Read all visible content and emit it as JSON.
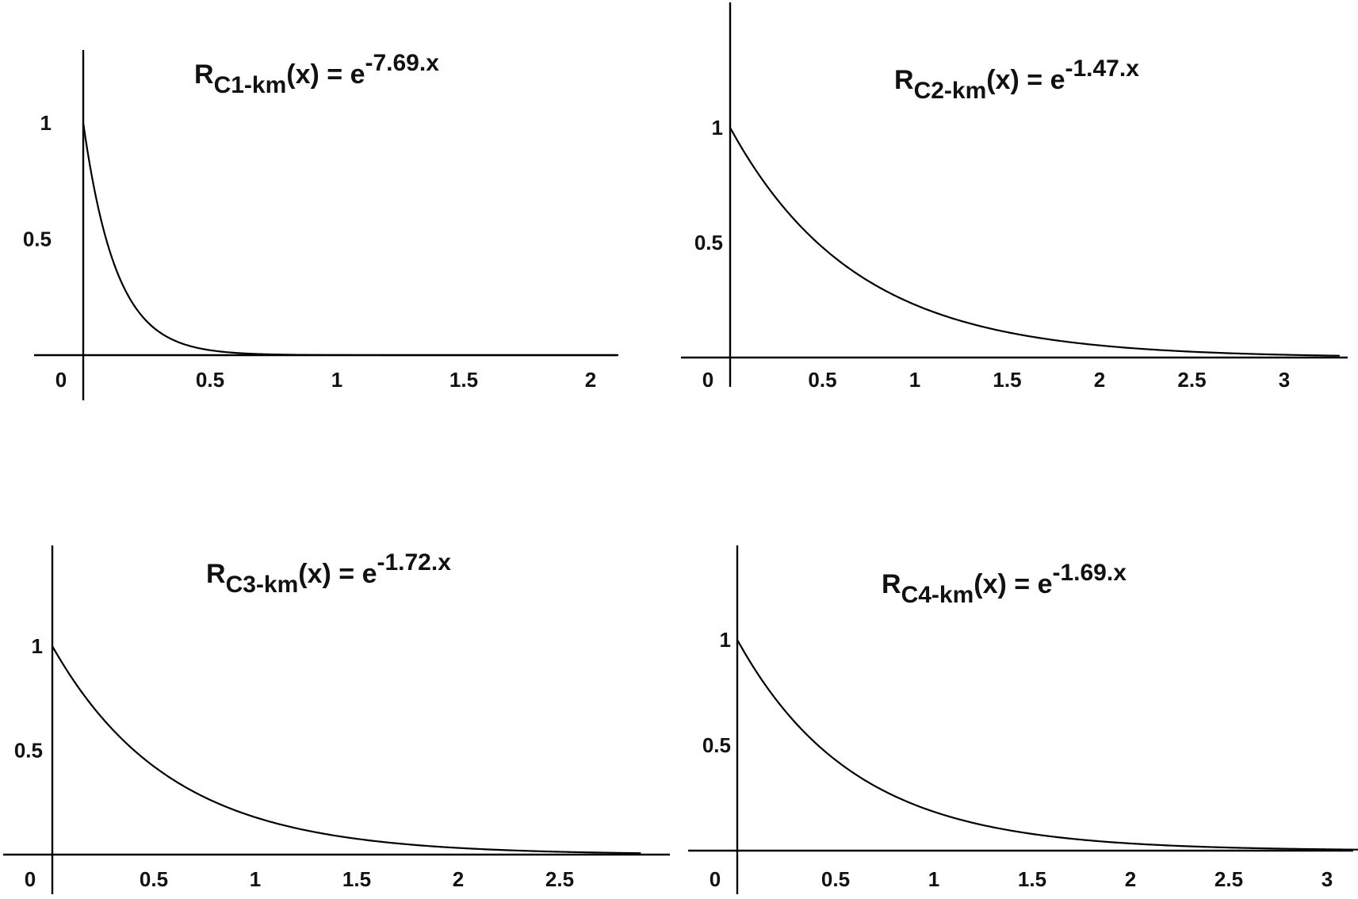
{
  "chart_data": [
    {
      "type": "line",
      "title": {
        "base": "R",
        "sub": "C1-km",
        "mid": "(x) = e",
        "sup": "-7.69.x"
      },
      "rate": 7.69,
      "series": [
        {
          "x": [
            0,
            0.1,
            0.2,
            0.3,
            0.4,
            0.5,
            0.6,
            0.8,
            1.0,
            1.5,
            2.0,
            2.1
          ],
          "y": [
            1,
            0.463,
            0.215,
            0.0995,
            0.0461,
            0.0214,
            0.0099,
            0.0021,
            0.0005,
            0.0,
            0.0,
            0.0
          ]
        }
      ],
      "x_ticks": [
        "0",
        "0.5",
        "1",
        "1.5",
        "2"
      ],
      "y_ticks": [
        "0.5",
        "1"
      ],
      "xlim": [
        0,
        2.1
      ],
      "ylim": [
        0,
        1.4
      ]
    },
    {
      "type": "line",
      "title": {
        "base": "R",
        "sub": "C2-km",
        "mid": "(x) = e",
        "sup": "-1.47.x"
      },
      "rate": 1.47,
      "series": [
        {
          "x": [
            0,
            0.25,
            0.5,
            0.75,
            1.0,
            1.5,
            2.0,
            2.5,
            3.0,
            3.3
          ],
          "y": [
            1,
            0.692,
            0.48,
            0.332,
            0.23,
            0.11,
            0.053,
            0.025,
            0.012,
            0.008
          ]
        }
      ],
      "x_ticks": [
        "0",
        "0.5",
        "1",
        "1.5",
        "2",
        "2.5",
        "3"
      ],
      "y_ticks": [
        "0.5",
        "1"
      ],
      "xlim": [
        0,
        3.3
      ],
      "ylim": [
        0,
        1.4
      ]
    },
    {
      "type": "line",
      "title": {
        "base": "R",
        "sub": "C3-km",
        "mid": "(x) = e",
        "sup": "-1.72.x"
      },
      "rate": 1.72,
      "series": [
        {
          "x": [
            0,
            0.25,
            0.5,
            0.75,
            1.0,
            1.5,
            2.0,
            2.5,
            2.9
          ],
          "y": [
            1,
            0.651,
            0.423,
            0.275,
            0.179,
            0.076,
            0.032,
            0.014,
            0.007
          ]
        }
      ],
      "x_ticks": [
        "0",
        "0.5",
        "1",
        "1.5",
        "2",
        "2.5"
      ],
      "y_ticks": [
        "0.5",
        "1"
      ],
      "xlim": [
        0,
        2.9
      ],
      "ylim": [
        0,
        1.4
      ]
    },
    {
      "type": "line",
      "title": {
        "base": "R",
        "sub": "C4-km",
        "mid": "(x) = e",
        "sup": "-1.69.x"
      },
      "rate": 1.69,
      "series": [
        {
          "x": [
            0,
            0.25,
            0.5,
            0.75,
            1.0,
            1.5,
            2.0,
            2.5,
            3.0,
            3.3
          ],
          "y": [
            1,
            0.655,
            0.43,
            0.282,
            0.185,
            0.079,
            0.034,
            0.015,
            0.006,
            0.004
          ]
        }
      ],
      "x_ticks": [
        "0",
        "0.5",
        "1",
        "1.5",
        "2",
        "2.5",
        "3"
      ],
      "y_ticks": [
        "0.5",
        "1"
      ],
      "xlim": [
        0,
        3.3
      ],
      "ylim": [
        0,
        1.4
      ]
    }
  ]
}
